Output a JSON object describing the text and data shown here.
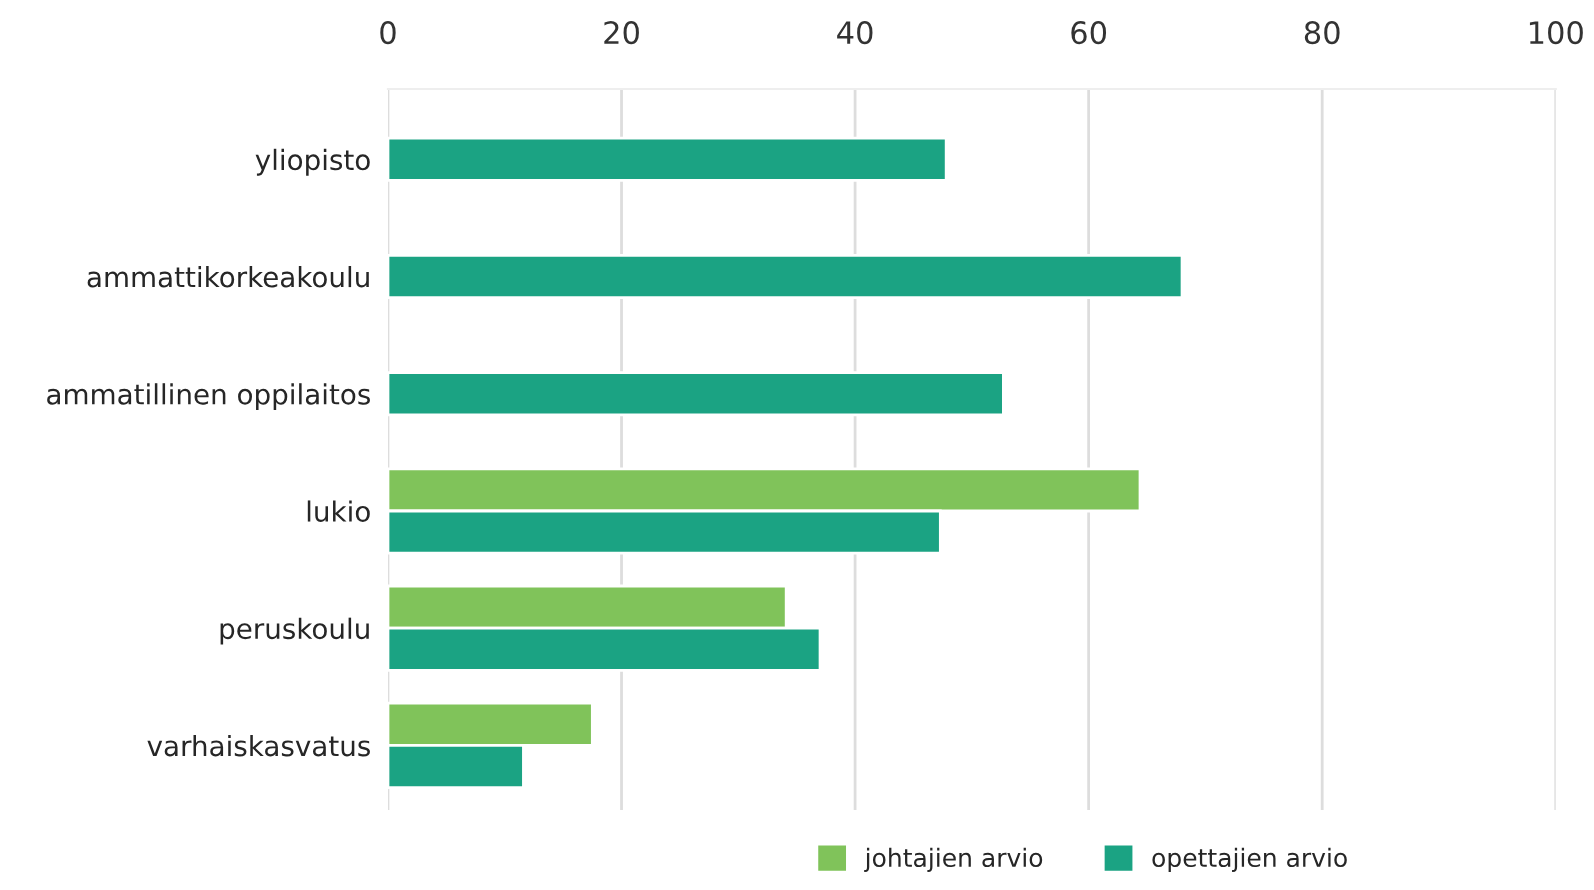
{
  "chart_data": {
    "type": "bar",
    "orientation": "horizontal",
    "categories": [
      "yliopisto",
      "ammattikorkeakoulu",
      "ammatillinen oppilaitos",
      "lukio",
      "peruskoulu",
      "varhaiskasvatus"
    ],
    "series": [
      {
        "name": "johtajien arvio",
        "color": "#80c35a",
        "values": [
          null,
          null,
          null,
          64.4,
          34.1,
          17.5
        ]
      },
      {
        "name": "opettajien arvio",
        "color": "#1ba383",
        "values": [
          47.8,
          68.0,
          52.7,
          47.3,
          37.0,
          11.6
        ]
      }
    ],
    "xlim": [
      0,
      100
    ],
    "xticks": [
      0,
      20,
      40,
      60,
      80,
      100
    ],
    "grid": "x",
    "legend": "bottom"
  }
}
